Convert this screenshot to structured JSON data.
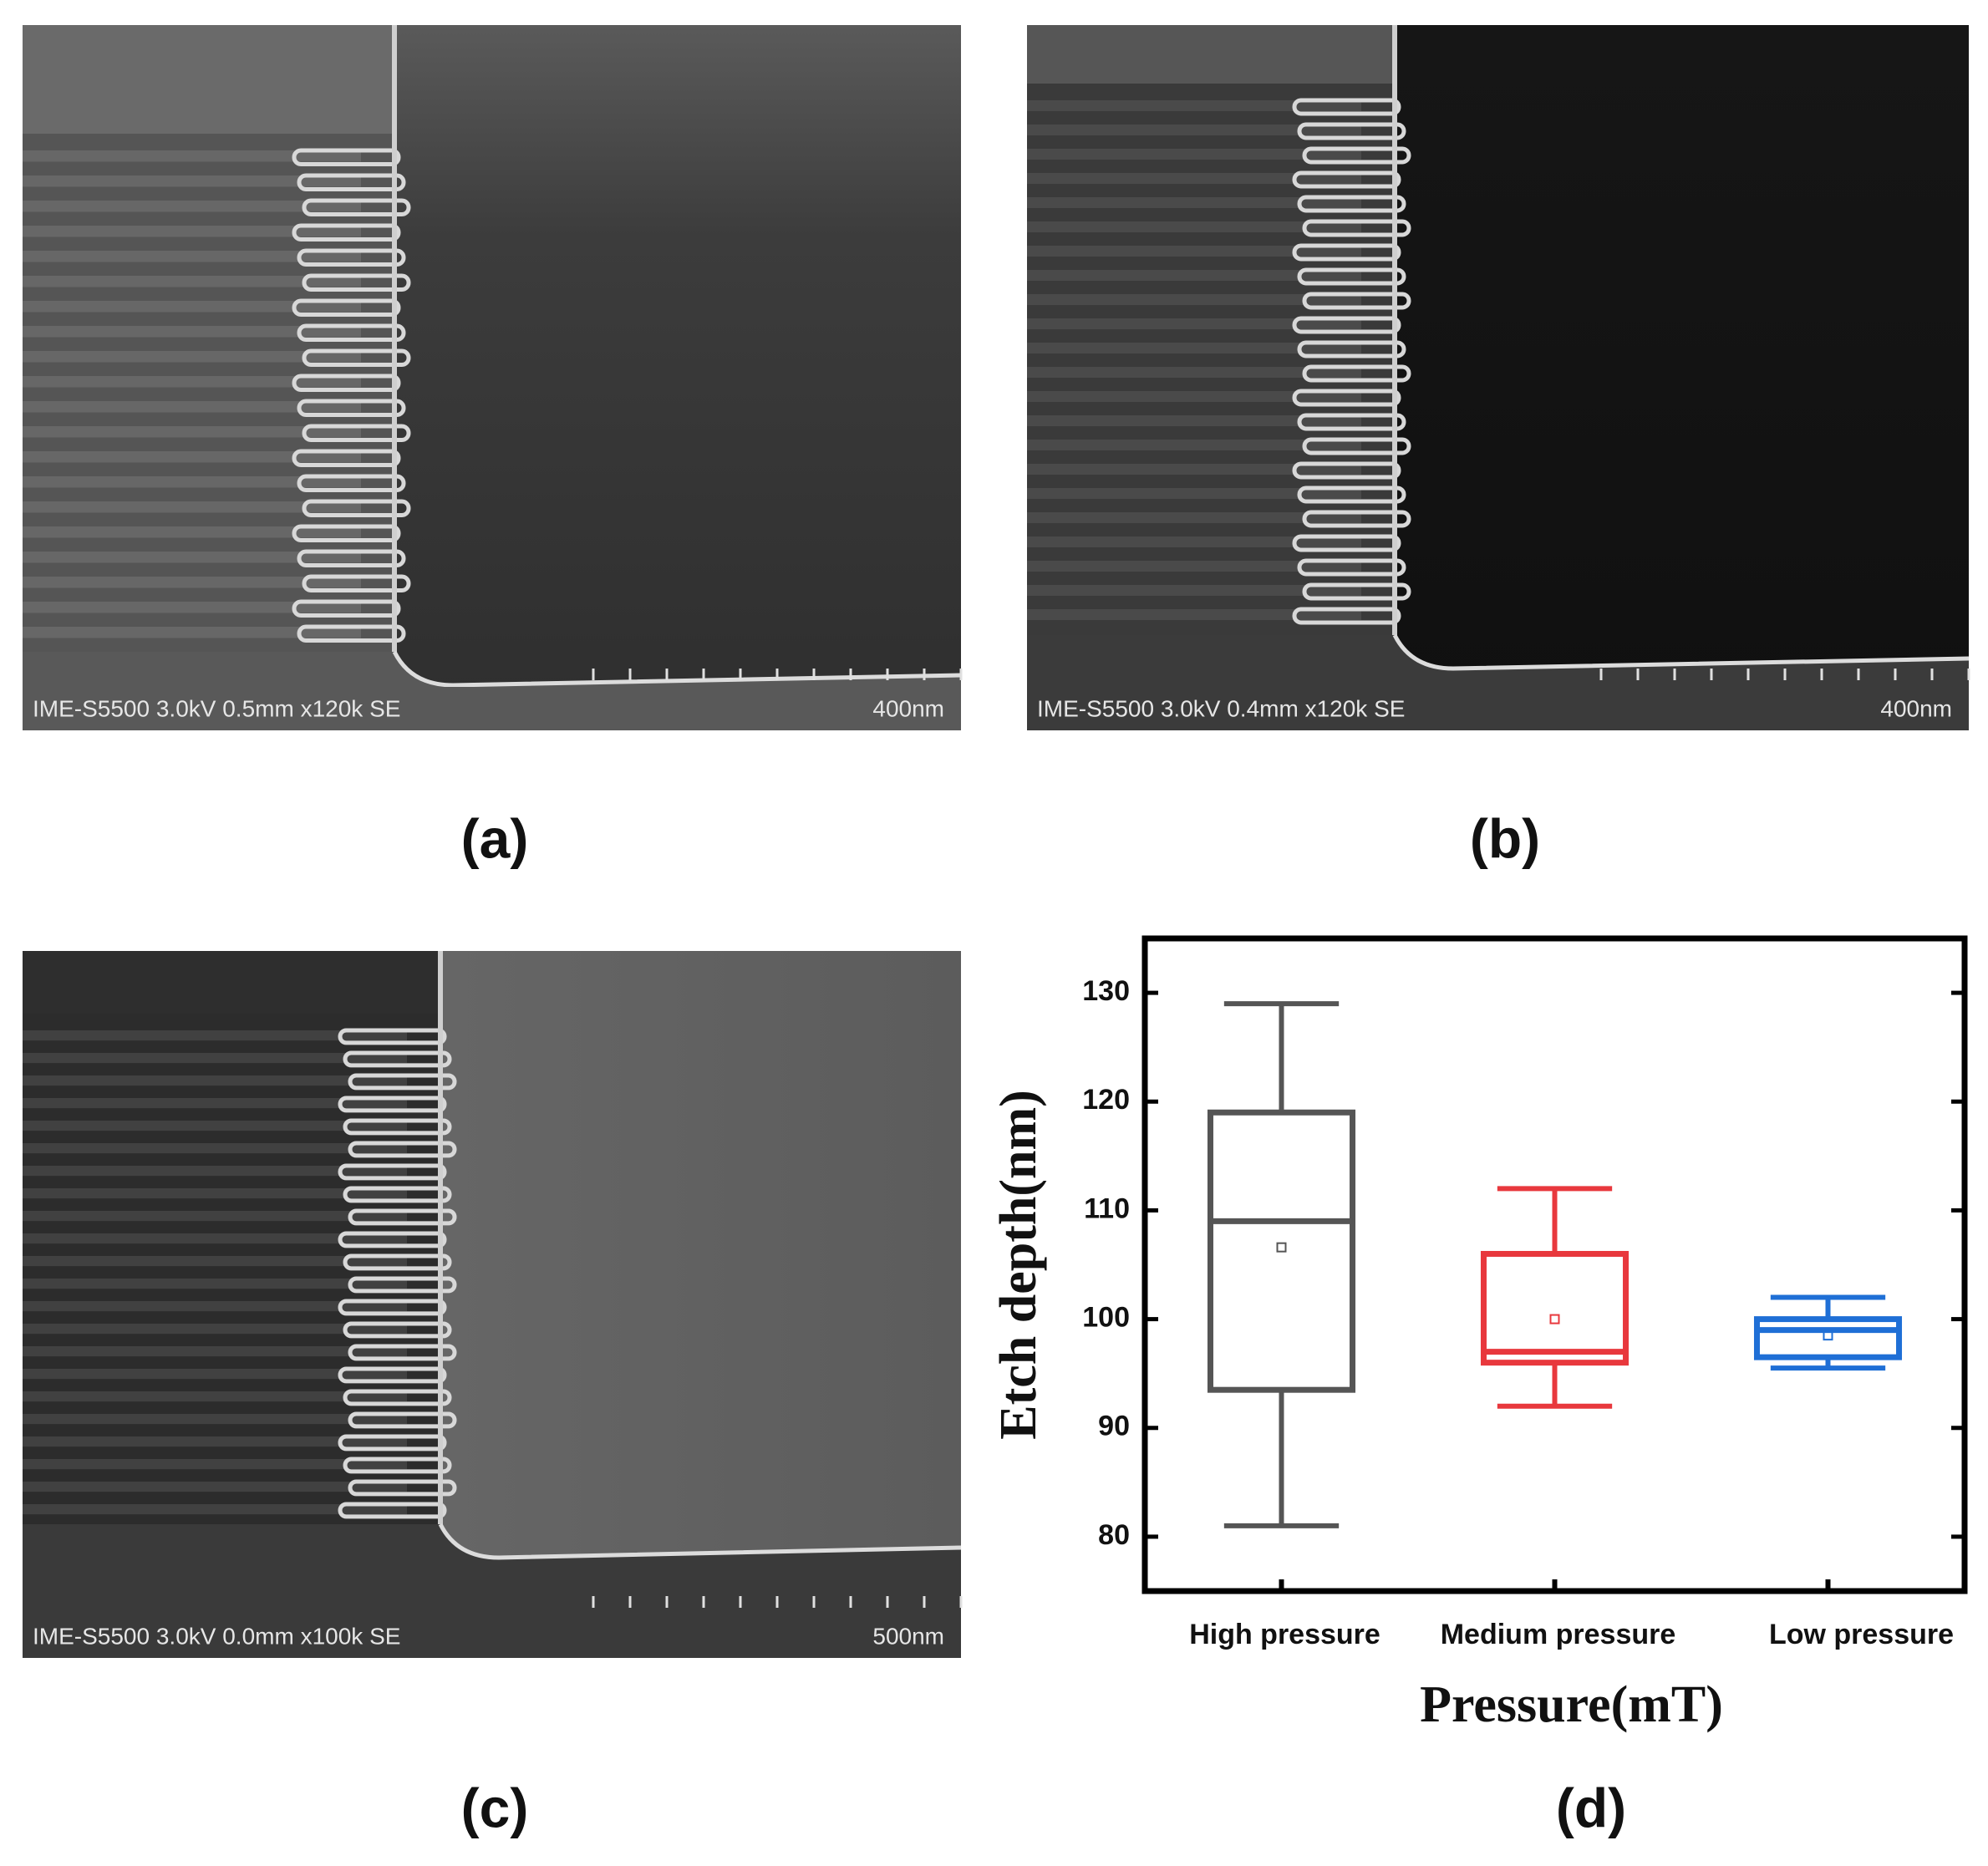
{
  "panels": [
    {
      "label": "(a)",
      "info": "IME-S5500 3.0kV 0.5mm x120k SE",
      "scale": "400nm"
    },
    {
      "label": "(b)",
      "info": "IME-S5500 3.0kV 0.4mm x120k SE",
      "scale": "400nm"
    },
    {
      "label": "(c)",
      "info": "IME-S5500 3.0kV 0.0mm x100k SE",
      "scale": "500nm"
    }
  ],
  "chart_label": "(d)",
  "chart_data": {
    "type": "box",
    "y_label": "Etch depth(nm)",
    "x_label": "Pressure(mT)",
    "categories": [
      "High pressure",
      "Medium pressure",
      "Low pressure"
    ],
    "boxes": [
      {
        "min": 81,
        "q1": 93.5,
        "median": 109,
        "q3": 119,
        "max": 129,
        "mean": 106.6,
        "color": "#555555"
      },
      {
        "min": 92,
        "q1": 96,
        "median": 97,
        "q3": 106,
        "max": 112,
        "mean": 100,
        "color": "#e8383d"
      },
      {
        "min": 95.5,
        "q1": 96.5,
        "median": 99,
        "q3": 100,
        "max": 102,
        "mean": 98.5,
        "color": "#1f6fd6"
      }
    ],
    "ylim": [
      75,
      135
    ],
    "yticks": [
      80,
      90,
      100,
      110,
      120,
      130
    ]
  }
}
